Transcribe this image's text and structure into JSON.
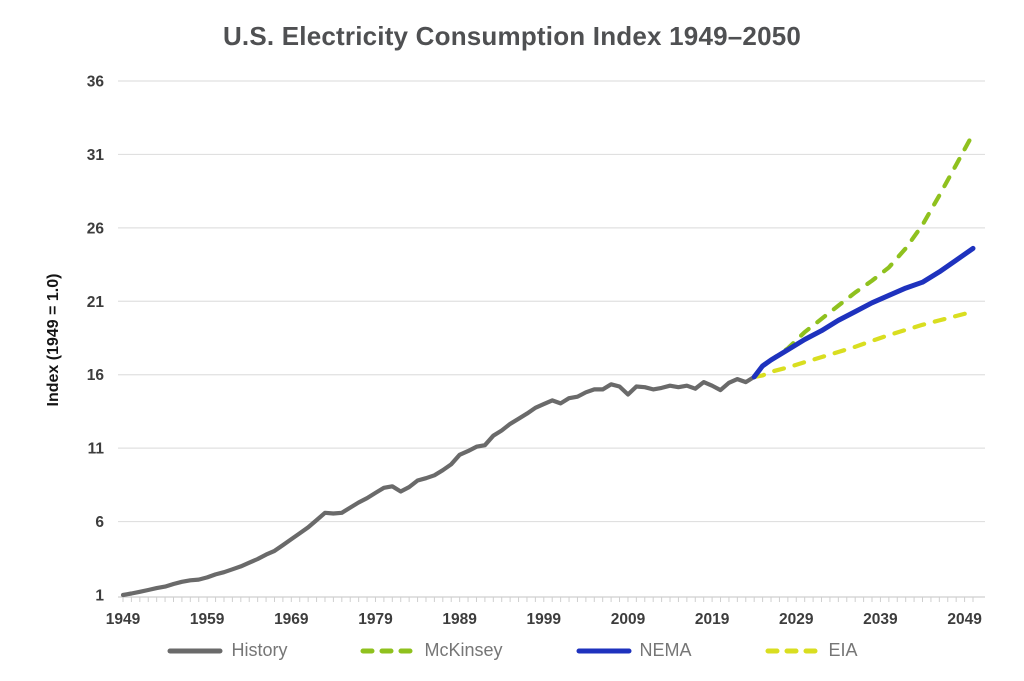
{
  "title": "U.S. Electricity Consumption Index 1949–2050",
  "chart_data": {
    "type": "line",
    "title": "U.S. Electricity Consumption Index 1949–2050",
    "xlabel": "",
    "ylabel": "Index (1949 = 1.0)",
    "ylim": [
      1,
      36
    ],
    "yticks": [
      1,
      6,
      11,
      16,
      21,
      26,
      31,
      36
    ],
    "xticks": [
      1949,
      1959,
      1969,
      1979,
      1989,
      1999,
      2009,
      2019,
      2029,
      2039,
      2049
    ],
    "x_range": [
      1949,
      2050
    ],
    "minor_ticks_every_year": true,
    "grid": "horizontal",
    "legend_position": "bottom",
    "colors": {
      "history": "#6a6a6a",
      "mckinsey": "#8fc11e",
      "nema": "#1e32be",
      "eia": "#d9de20",
      "gridline": "#e0e0e0",
      "axis": "#cfcfcf",
      "tick_text": "#3d3d3d"
    },
    "series": [
      {
        "name": "History",
        "style": "solid",
        "color": "#6a6a6a",
        "x": [
          1949,
          1950,
          1951,
          1952,
          1953,
          1954,
          1955,
          1956,
          1957,
          1958,
          1959,
          1960,
          1961,
          1962,
          1963,
          1964,
          1965,
          1966,
          1967,
          1968,
          1969,
          1970,
          1971,
          1972,
          1973,
          1974,
          1975,
          1976,
          1977,
          1978,
          1979,
          1980,
          1981,
          1982,
          1983,
          1984,
          1985,
          1986,
          1987,
          1988,
          1989,
          1990,
          1991,
          1992,
          1993,
          1994,
          1995,
          1996,
          1997,
          1998,
          1999,
          2000,
          2001,
          2002,
          2003,
          2004,
          2005,
          2006,
          2007,
          2008,
          2009,
          2010,
          2011,
          2012,
          2013,
          2014,
          2015,
          2016,
          2017,
          2018,
          2019,
          2020,
          2021,
          2022,
          2023,
          2024
        ],
        "values": [
          1.0,
          1.1,
          1.22,
          1.34,
          1.47,
          1.57,
          1.75,
          1.9,
          2.0,
          2.05,
          2.2,
          2.4,
          2.55,
          2.75,
          2.95,
          3.2,
          3.45,
          3.75,
          4.0,
          4.4,
          4.8,
          5.2,
          5.6,
          6.1,
          6.6,
          6.55,
          6.6,
          6.95,
          7.3,
          7.6,
          7.95,
          8.3,
          8.4,
          8.05,
          8.35,
          8.8,
          8.95,
          9.15,
          9.5,
          9.9,
          10.55,
          10.8,
          11.1,
          11.2,
          11.85,
          12.2,
          12.65,
          13.0,
          13.35,
          13.75,
          14.0,
          14.25,
          14.05,
          14.4,
          14.5,
          14.8,
          15.0,
          15.0,
          15.35,
          15.2,
          14.65,
          15.2,
          15.15,
          15.0,
          15.1,
          15.25,
          15.15,
          15.25,
          15.05,
          15.5,
          15.25,
          14.95,
          15.45,
          15.7,
          15.5,
          15.85
        ]
      },
      {
        "name": "McKinsey",
        "style": "dashed",
        "color": "#8fc11e",
        "x": [
          2024,
          2025,
          2026,
          2028,
          2030,
          2032,
          2034,
          2036,
          2038,
          2040,
          2042,
          2044,
          2046,
          2048,
          2050
        ],
        "values": [
          15.85,
          16.6,
          17.0,
          17.8,
          18.9,
          19.8,
          20.7,
          21.6,
          22.4,
          23.3,
          24.6,
          26.2,
          28.2,
          30.3,
          32.4
        ]
      },
      {
        "name": "EIA",
        "style": "dashed",
        "color": "#d9de20",
        "x": [
          2024,
          2025,
          2026,
          2028,
          2030,
          2032,
          2034,
          2036,
          2038,
          2040,
          2042,
          2044,
          2046,
          2048,
          2050
        ],
        "values": [
          15.85,
          15.95,
          16.2,
          16.5,
          16.85,
          17.2,
          17.55,
          17.9,
          18.3,
          18.7,
          19.05,
          19.4,
          19.7,
          20.0,
          20.3
        ]
      },
      {
        "name": "NEMA",
        "style": "solid",
        "color": "#1e32be",
        "x": [
          2024,
          2025,
          2026,
          2028,
          2030,
          2032,
          2034,
          2036,
          2038,
          2040,
          2042,
          2044,
          2046,
          2048,
          2050
        ],
        "values": [
          15.85,
          16.6,
          17.0,
          17.7,
          18.4,
          19.0,
          19.7,
          20.3,
          20.9,
          21.4,
          21.9,
          22.3,
          23.0,
          23.8,
          24.6
        ]
      }
    ],
    "legend_order": [
      "History",
      "McKinsey",
      "NEMA",
      "EIA"
    ]
  }
}
